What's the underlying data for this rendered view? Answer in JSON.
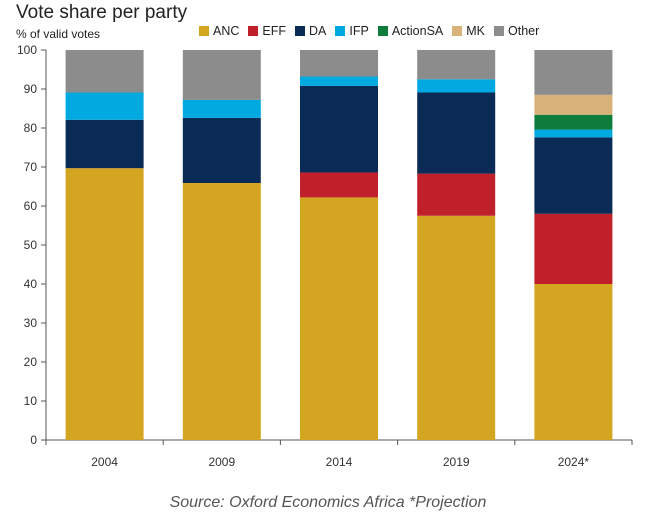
{
  "title": "Vote share per party",
  "ylabel": "% of valid votes",
  "source": "Source: Oxford Economics Africa *Projection",
  "chart_data": {
    "type": "bar",
    "stacked": true,
    "title": "Vote share per party",
    "ylabel": "% of valid votes",
    "xlabel": "",
    "ylim": [
      0,
      100
    ],
    "yticks": [
      0,
      10,
      20,
      30,
      40,
      50,
      60,
      70,
      80,
      90,
      100
    ],
    "grid": false,
    "legend": "top",
    "categories": [
      "2004",
      "2009",
      "2014",
      "2019",
      "2024*"
    ],
    "series": [
      {
        "name": "ANC",
        "color": "#D4A520",
        "values": [
          69.7,
          65.9,
          62.2,
          57.5,
          40.0
        ]
      },
      {
        "name": "EFF",
        "color": "#C0202A",
        "values": [
          0,
          0,
          6.4,
          10.8,
          18.0
        ]
      },
      {
        "name": "DA",
        "color": "#0B2B57",
        "values": [
          12.4,
          16.7,
          22.2,
          20.8,
          19.6
        ]
      },
      {
        "name": "IFP",
        "color": "#00A9E0",
        "values": [
          7.0,
          4.6,
          2.4,
          3.4,
          2.0
        ]
      },
      {
        "name": "ActionSA",
        "color": "#0E7C3A",
        "values": [
          0,
          0,
          0,
          0,
          3.8
        ]
      },
      {
        "name": "MK",
        "color": "#D9B27A",
        "values": [
          0,
          0,
          0,
          0,
          5.1
        ]
      },
      {
        "name": "Other",
        "color": "#8C8C8C",
        "values": [
          10.9,
          12.8,
          6.8,
          7.5,
          11.5
        ]
      }
    ]
  }
}
